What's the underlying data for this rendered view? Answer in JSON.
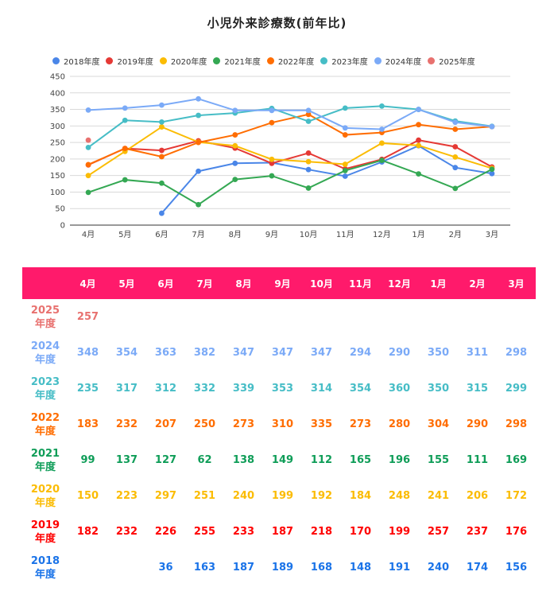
{
  "chart_data": {
    "type": "line",
    "title": "小児外来診療数(前年比)",
    "categories": [
      "4月",
      "5月",
      "6月",
      "7月",
      "8月",
      "9月",
      "10月",
      "11月",
      "12月",
      "1月",
      "2月",
      "3月"
    ],
    "ylim": [
      0,
      450
    ],
    "yticks": [
      0,
      50,
      100,
      150,
      200,
      250,
      300,
      350,
      400,
      450
    ],
    "grid": true,
    "legend_position": "top",
    "series": [
      {
        "name": "2018年度",
        "row_label": [
          "2018",
          "年度"
        ],
        "color": "#1a73e8",
        "line_color": "#4a86e8",
        "values": [
          null,
          null,
          36,
          163,
          187,
          189,
          168,
          148,
          191,
          240,
          174,
          156
        ]
      },
      {
        "name": "2019年度",
        "row_label": [
          "2019",
          "年度"
        ],
        "color": "#ff0000",
        "line_color": "#e53935",
        "values": [
          182,
          232,
          226,
          255,
          233,
          187,
          218,
          170,
          199,
          257,
          237,
          176
        ]
      },
      {
        "name": "2020年度",
        "row_label": [
          "2020",
          "年度"
        ],
        "color": "#fbbc04",
        "line_color": "#fbbc04",
        "values": [
          150,
          223,
          297,
          251,
          240,
          199,
          192,
          184,
          248,
          241,
          206,
          172
        ]
      },
      {
        "name": "2021年度",
        "row_label": [
          "2021",
          "年度"
        ],
        "color": "#0f9d58",
        "line_color": "#34a853",
        "values": [
          99,
          137,
          127,
          62,
          138,
          149,
          112,
          165,
          196,
          155,
          111,
          169
        ]
      },
      {
        "name": "2022年度",
        "row_label": [
          "2022",
          "年度"
        ],
        "color": "#ff6d01",
        "line_color": "#ff6d01",
        "values": [
          183,
          232,
          207,
          250,
          273,
          310,
          335,
          273,
          280,
          304,
          290,
          298
        ]
      },
      {
        "name": "2023年度",
        "row_label": [
          "2023",
          "年度"
        ],
        "color": "#46bdc6",
        "line_color": "#46bdc6",
        "values": [
          235,
          317,
          312,
          332,
          339,
          353,
          314,
          354,
          360,
          350,
          315,
          299
        ]
      },
      {
        "name": "2024年度",
        "row_label": [
          "2024",
          "年度"
        ],
        "color": "#7baaf7",
        "line_color": "#7baaf7",
        "values": [
          348,
          354,
          363,
          382,
          347,
          347,
          347,
          294,
          290,
          350,
          311,
          298
        ]
      },
      {
        "name": "2025年度",
        "row_label": [
          "2025",
          "年度"
        ],
        "color": "#e8716f",
        "line_color": "#e8716f",
        "values": [
          257,
          null,
          null,
          null,
          null,
          null,
          null,
          null,
          null,
          null,
          null,
          null
        ]
      }
    ]
  }
}
